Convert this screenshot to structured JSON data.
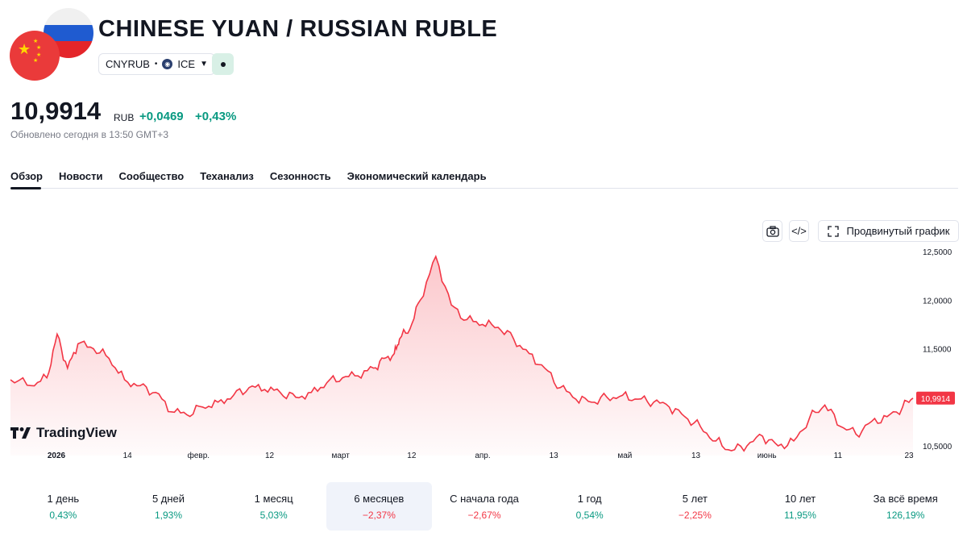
{
  "header": {
    "title": "CHINESE YUAN / RUSSIAN RUBLE",
    "symbol": "CNYRUB",
    "exchange": "ICE"
  },
  "quote": {
    "price": "10,9914",
    "currency": "RUB",
    "change": "+0,0469",
    "change_percent": "+0,43%",
    "updated": "Обновлено сегодня в 13:50 GMT+3"
  },
  "tabs": [
    "Обзор",
    "Новости",
    "Сообщество",
    "Теханализ",
    "Сезонность",
    "Экономический календарь"
  ],
  "toolbar": {
    "advanced_chart_label": "Продвинутый график"
  },
  "branding": {
    "logo_text": "TradingView"
  },
  "chart_data": {
    "type": "area",
    "x": [
      "2026-01-01",
      "2026-01-05",
      "2026-01-08",
      "2026-01-10",
      "2026-01-12",
      "2026-01-14",
      "2026-01-17",
      "2026-01-20",
      "2026-01-23",
      "2026-01-26",
      "2026-01-29",
      "2026-02-01",
      "2026-02-04",
      "2026-02-07",
      "2026-02-10",
      "2026-02-13",
      "2026-02-16",
      "2026-02-19",
      "2026-02-22",
      "2026-02-25",
      "2026-02-28",
      "2026-03-03",
      "2026-03-06",
      "2026-03-09",
      "2026-03-12",
      "2026-03-14",
      "2026-03-16",
      "2026-03-17",
      "2026-03-19",
      "2026-03-21",
      "2026-03-24",
      "2026-03-27",
      "2026-03-30",
      "2026-04-02",
      "2026-04-05",
      "2026-04-08",
      "2026-04-11",
      "2026-04-14",
      "2026-04-17",
      "2026-04-20",
      "2026-04-23",
      "2026-04-26",
      "2026-04-29",
      "2026-05-02",
      "2026-05-05",
      "2026-05-08",
      "2026-05-11",
      "2026-05-14",
      "2026-05-17",
      "2026-05-20",
      "2026-05-23",
      "2026-05-26",
      "2026-05-29",
      "2026-06-01",
      "2026-06-04",
      "2026-06-07",
      "2026-06-10",
      "2026-06-13",
      "2026-06-16",
      "2026-06-19",
      "2026-06-22",
      "2026-06-24"
    ],
    "values": [
      11.18,
      11.12,
      11.2,
      11.65,
      11.3,
      11.55,
      11.5,
      11.4,
      11.18,
      11.12,
      11.05,
      10.85,
      10.82,
      10.9,
      10.95,
      11.02,
      11.1,
      11.08,
      11.05,
      11.0,
      11.05,
      11.15,
      11.2,
      11.22,
      11.3,
      11.4,
      11.45,
      11.6,
      11.7,
      12.0,
      12.45,
      11.95,
      11.8,
      11.75,
      11.72,
      11.6,
      11.45,
      11.3,
      11.1,
      10.98,
      10.95,
      11.0,
      11.02,
      10.98,
      10.95,
      10.9,
      10.8,
      10.7,
      10.55,
      10.45,
      10.5,
      10.6,
      10.5,
      10.55,
      10.78,
      10.92,
      10.7,
      10.62,
      10.75,
      10.8,
      10.9,
      10.9914
    ],
    "xlabel": "",
    "ylabel": "",
    "x_ticks": [
      "2026",
      "14",
      "февр.",
      "12",
      "март",
      "12",
      "апр.",
      "13",
      "май",
      "13",
      "июнь",
      "11",
      "23"
    ],
    "y_ticks": [
      "12,5000",
      "12,0000",
      "11,5000",
      "10,5000"
    ],
    "ylim": [
      10.4,
      12.6
    ],
    "last_value_label": "10,9914",
    "line_color": "#f23645",
    "fill_color": "#f23645",
    "grid": false
  },
  "periods": [
    {
      "label": "1 день",
      "value": "0,43%",
      "sign": "pos"
    },
    {
      "label": "5 дней",
      "value": "1,93%",
      "sign": "pos"
    },
    {
      "label": "1 месяц",
      "value": "5,03%",
      "sign": "pos"
    },
    {
      "label": "6 месяцев",
      "value": "−2,37%",
      "sign": "neg",
      "active": true
    },
    {
      "label": "С начала года",
      "value": "−2,67%",
      "sign": "neg"
    },
    {
      "label": "1 год",
      "value": "0,54%",
      "sign": "pos"
    },
    {
      "label": "5 лет",
      "value": "−2,25%",
      "sign": "neg"
    },
    {
      "label": "10 лет",
      "value": "11,95%",
      "sign": "pos"
    },
    {
      "label": "За всё время",
      "value": "126,19%",
      "sign": "pos"
    }
  ],
  "colors": {
    "positive": "#089981",
    "negative": "#f23645",
    "text": "#131722",
    "muted": "#787b86"
  }
}
